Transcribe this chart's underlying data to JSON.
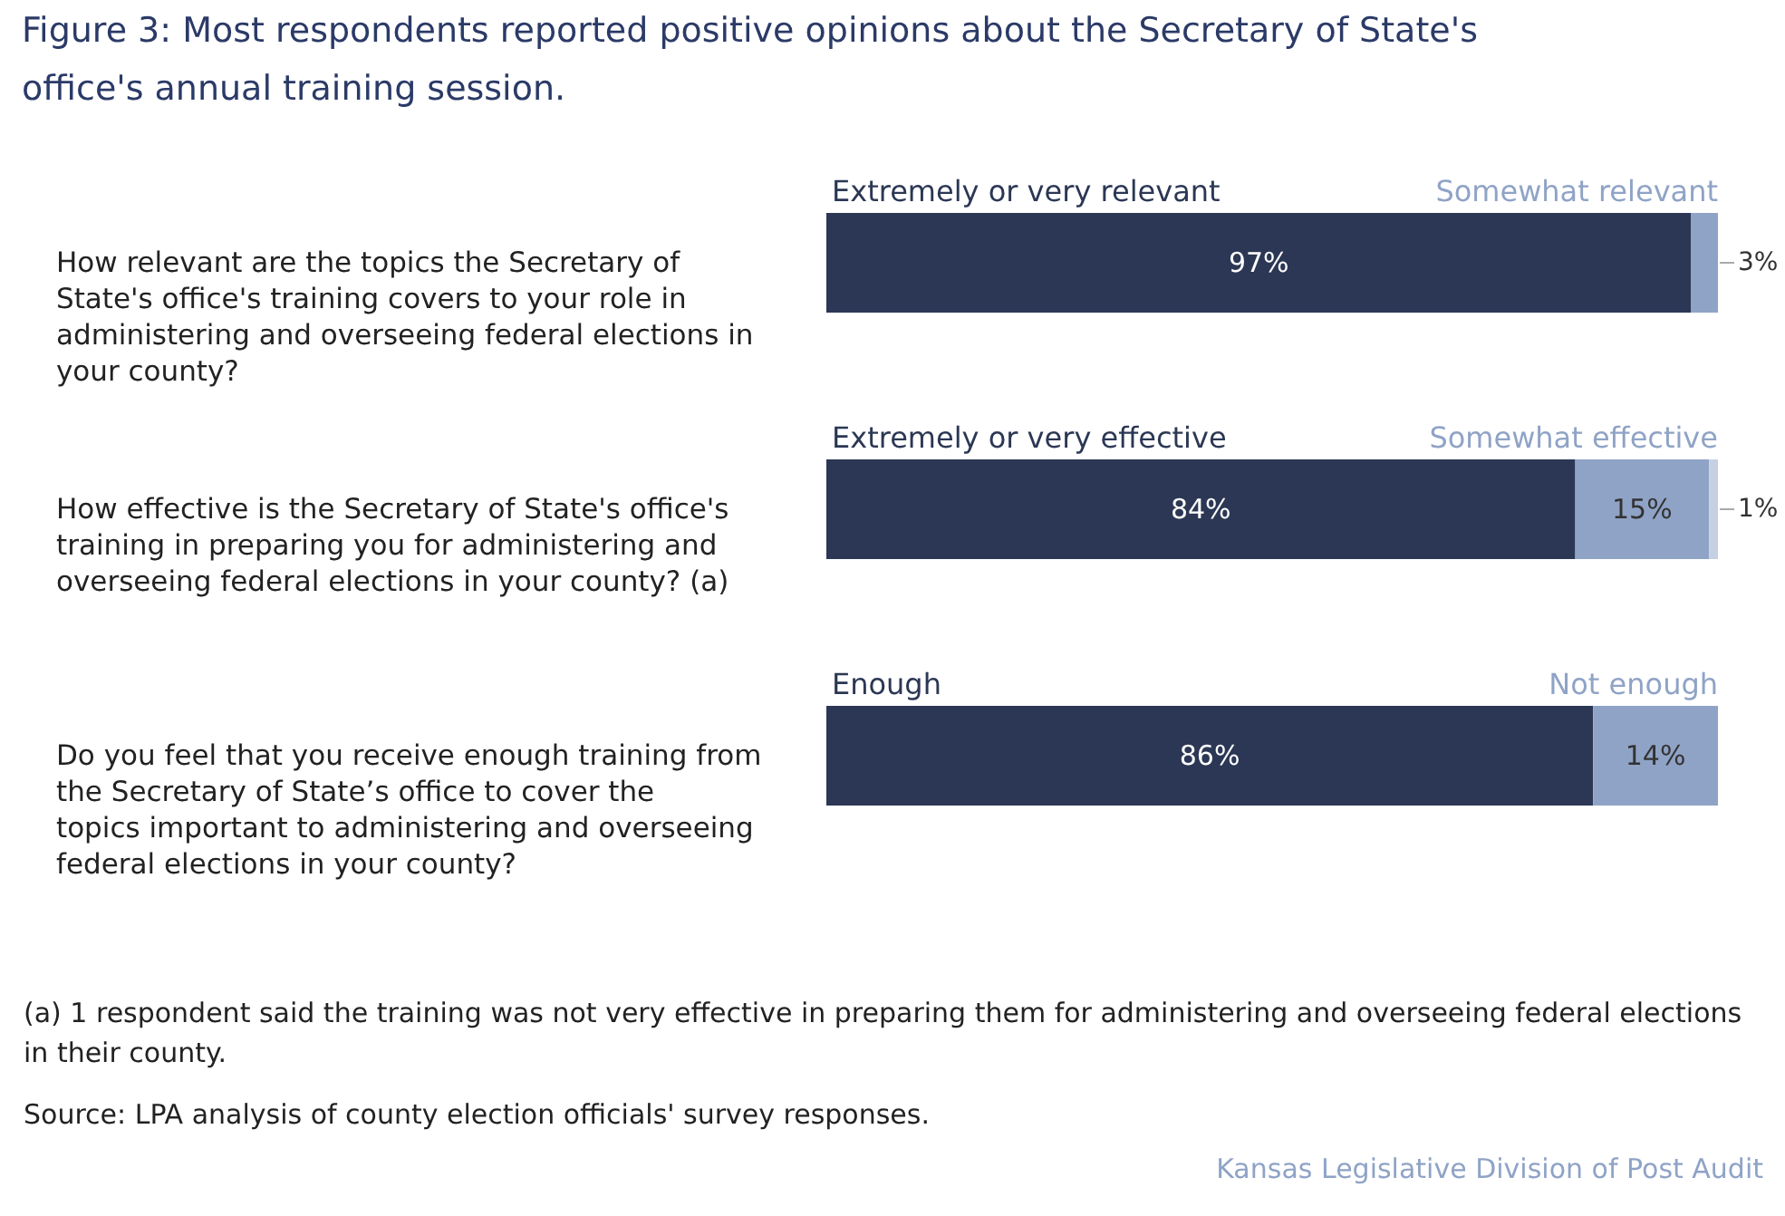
{
  "chart_data": {
    "type": "bar",
    "orientation": "horizontal",
    "stacked": true,
    "title": "Figure 3: Most respondents reported positive opinions about the Secretary of State's office's annual training session.",
    "categories": [
      "How relevant are the topics the Secretary of State's office's training covers to your role in administering and overseeing federal elections in your county?",
      "How effective is the Secretary of State's office's training in preparing you for administering and overseeing federal elections in your county? (a)",
      "Do you feel that you receive enough training from the Secretary of State’s office to cover the topics important to administering and overseeing federal elections in your county?"
    ],
    "series": [
      {
        "color": "#2b3754",
        "values": [
          97,
          84,
          86
        ],
        "value_labels": [
          "97%",
          "84%",
          "86%"
        ]
      },
      {
        "color": "#8fa3c6",
        "values": [
          3,
          15,
          14
        ],
        "value_labels": [
          "3%",
          "15%",
          "14%"
        ]
      },
      {
        "color": "#c5d0e3",
        "values": [
          null,
          1,
          null
        ],
        "value_labels": [
          null,
          "1%",
          null
        ]
      }
    ],
    "annotations": [
      "Extremely or very relevant",
      "Somewhat relevant",
      "Extremely or very effective",
      "Somewhat effective",
      "Enough",
      "Not enough",
      "(a) 1 respondent said the training was not very effective in preparing them for administering and overseeing federal elections in their county.",
      "Source: LPA analysis of county election officials' survey responses.",
      "Kansas Legislative Division of Post Audit"
    ]
  }
}
